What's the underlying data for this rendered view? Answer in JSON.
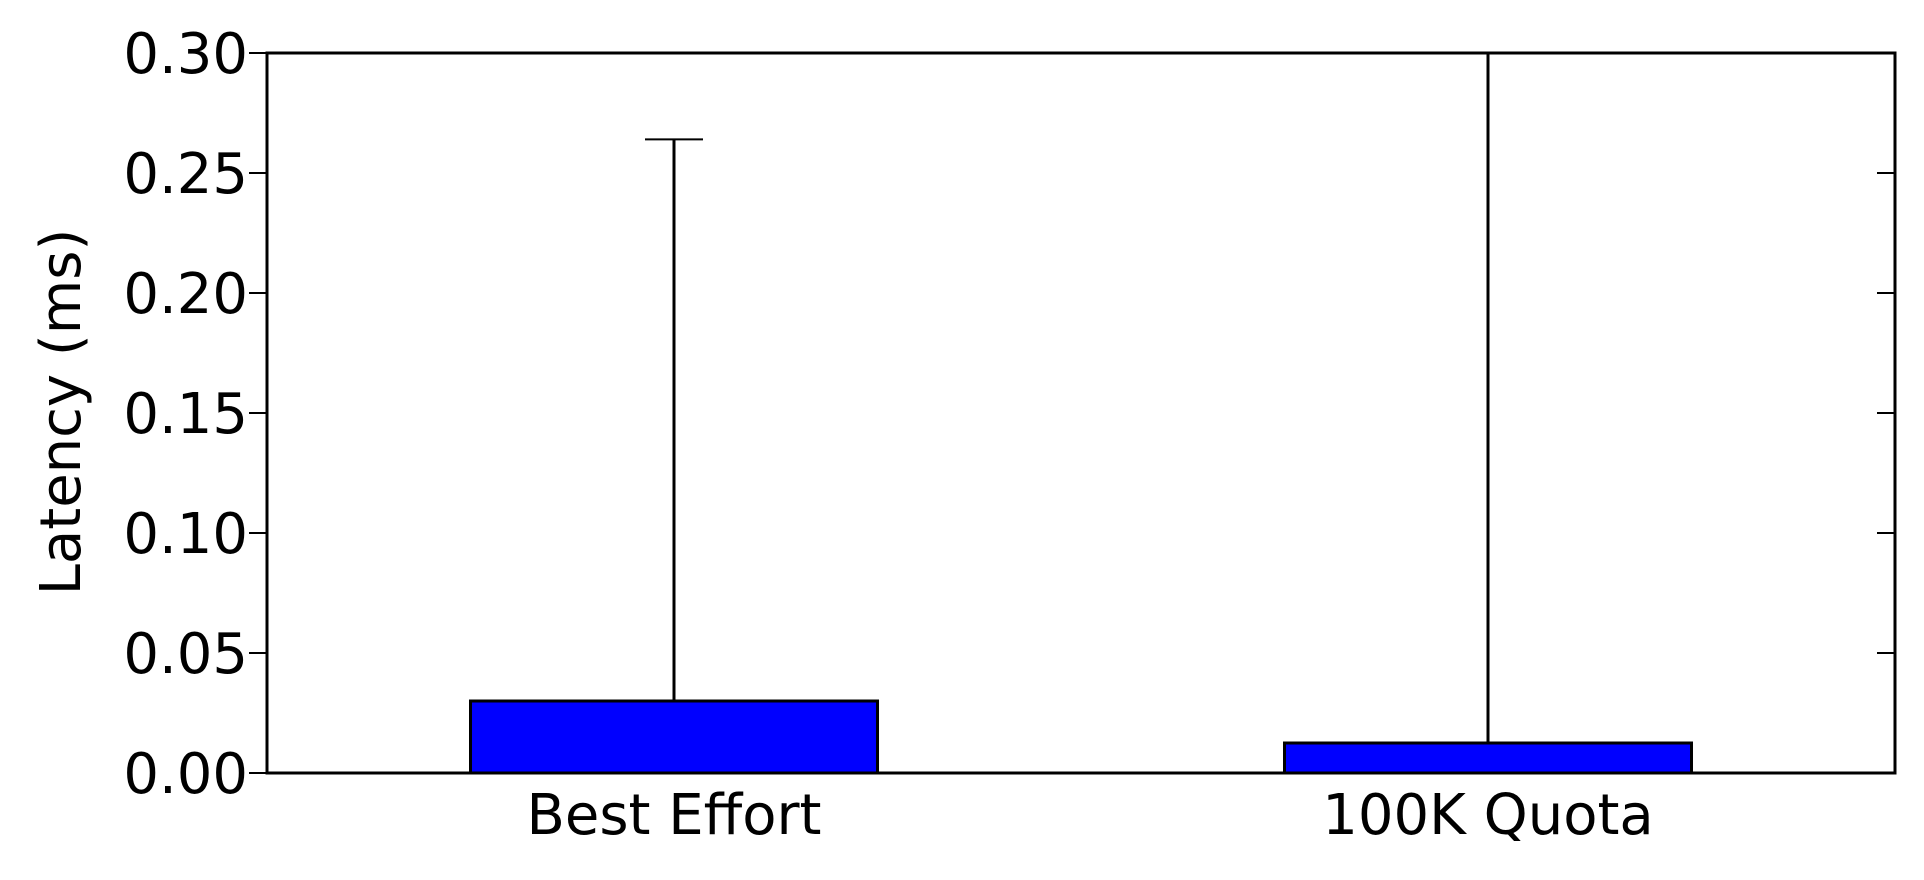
{
  "chart_data": {
    "type": "bar",
    "categories": [
      "Best Effort",
      "100K Quota"
    ],
    "values": [
      0.03,
      0.0125
    ],
    "error_upper": [
      0.264,
      0.305
    ],
    "ylabel": "Latency (ms)",
    "ylim": [
      0,
      0.3
    ],
    "yticks": [
      "0.00",
      "0.05",
      "0.10",
      "0.15",
      "0.20",
      "0.25",
      "0.30"
    ],
    "grid": false,
    "bar_color": "#0000ff",
    "edge_color": "#000000"
  }
}
